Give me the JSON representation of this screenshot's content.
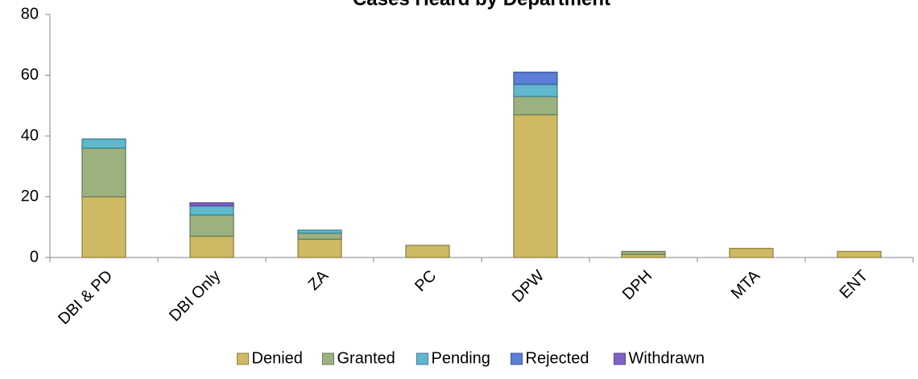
{
  "chart_data": {
    "type": "stacked_bar",
    "title": "Cases Heard by Department",
    "categories": [
      "DBI & PD",
      "DBI Only",
      "ZA",
      "PC",
      "DPW",
      "DPH",
      "MTA",
      "ENT"
    ],
    "series": [
      {
        "name": "Denied",
        "color": "#cfb964",
        "values": [
          20,
          7,
          6,
          4,
          47,
          1,
          3,
          2
        ]
      },
      {
        "name": "Granted",
        "color": "#9bb27f",
        "values": [
          16,
          7,
          2,
          0,
          6,
          1,
          0,
          0
        ]
      },
      {
        "name": "Pending",
        "color": "#5fb8cd",
        "values": [
          3,
          3,
          1,
          0,
          4,
          0,
          0,
          0
        ]
      },
      {
        "name": "Rejected",
        "color": "#5b7fd6",
        "values": [
          0,
          0,
          0,
          0,
          4,
          0,
          0,
          0
        ]
      },
      {
        "name": "Withdrawn",
        "color": "#7f62c9",
        "values": [
          0,
          1,
          0,
          0,
          0,
          0,
          0,
          0
        ]
      }
    ],
    "ylim": [
      0,
      80
    ],
    "yticks": [
      0,
      20,
      40,
      60,
      80
    ],
    "grid": false,
    "legend": "bottom"
  }
}
